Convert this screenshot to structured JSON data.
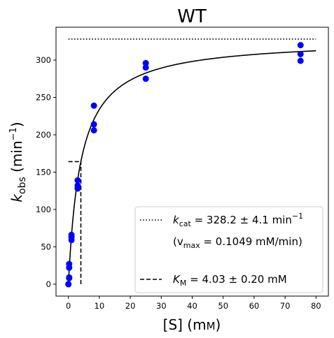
{
  "chart_data": {
    "type": "scatter",
    "title": "WT",
    "xlabel": "[S] (mM)",
    "ylabel": "k_obs (min^-1)",
    "xlim": [
      -4,
      84
    ],
    "ylim": [
      -16,
      344
    ],
    "xticks": [
      0,
      10,
      20,
      30,
      40,
      50,
      60,
      70,
      80
    ],
    "yticks": [
      0,
      50,
      100,
      150,
      200,
      250,
      300
    ],
    "grid": false,
    "legend_position": "bottom-right",
    "series": [
      {
        "kind": "points",
        "color": "#0000ff",
        "x": [
          0,
          0,
          0.25,
          0.25,
          0.25,
          0.25,
          1,
          1,
          1,
          3,
          3,
          3,
          8.25,
          8.25,
          8.25,
          25,
          25,
          25,
          75,
          75,
          75
        ],
        "y": [
          0,
          0,
          9,
          8,
          27,
          22,
          66,
          63,
          59,
          139,
          132,
          128,
          239,
          214,
          206,
          296,
          290,
          275,
          320,
          308,
          299
        ]
      },
      {
        "kind": "curve",
        "color": "#000000",
        "model": "michaelis-menten",
        "kcat": 328.2,
        "km": 4.03,
        "x_range": [
          0,
          80
        ]
      },
      {
        "kind": "hline",
        "style": "dotted",
        "color": "#000000",
        "y": 328.2,
        "x_range": [
          0,
          80
        ],
        "name": "k_cat = 328.2 ± 4.1 min^-1"
      },
      {
        "kind": "km-guide",
        "style": "dashed",
        "color": "#000000",
        "x": 4.03,
        "y": 164.1,
        "name": "K_M = 4.03 ± 0.20 mM"
      }
    ],
    "legend": {
      "kcat_prefix": "k",
      "kcat_sub": "cat",
      "kcat_value": " = 328.2 ± 4.1 min",
      "kcat_sup": "−1",
      "vmax_open": "(v",
      "vmax_sub": "max",
      "vmax_value": " = 0.1049 mM/min)",
      "km_prefix": "K",
      "km_sub": "M",
      "km_value": " = 4.03 ± 0.20 mM"
    },
    "axis_text": {
      "x_main": "[S] (m",
      "x_unit": "M",
      "x_close": ")",
      "y_k": "k",
      "y_sub": "obs",
      "y_unit": " (min",
      "y_sup": "−1",
      "y_close": ")"
    }
  }
}
